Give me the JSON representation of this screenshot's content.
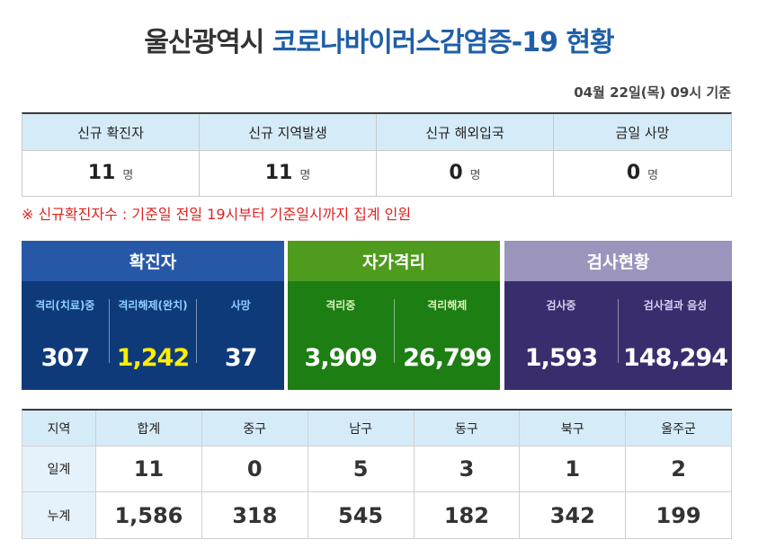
{
  "header": {
    "title_city": "울산광역시",
    "title_main": "코로나바이러스감염증-19 현황",
    "basis": "04월 22일(목) 09시 기준"
  },
  "new_cases": {
    "columns": [
      {
        "label": "신규 확진자",
        "value": "11",
        "unit": "명"
      },
      {
        "label": "신규 지역발생",
        "value": "11",
        "unit": "명"
      },
      {
        "label": "신규 해외입국",
        "value": "0",
        "unit": "명"
      },
      {
        "label": "금일 사망",
        "value": "0",
        "unit": "명"
      }
    ],
    "note": "※ 신규확진자수 : 기준일 전일 19시부터 기준일시까지 집계 인원"
  },
  "panels": {
    "confirmed": {
      "title": "확진자",
      "items": [
        {
          "label": "격리(치료)중",
          "value": "307"
        },
        {
          "label": "격리해제(완치)",
          "value": "1,242"
        },
        {
          "label": "사망",
          "value": "37"
        }
      ]
    },
    "quarantine": {
      "title": "자가격리",
      "items": [
        {
          "label": "격리중",
          "value": "3,909"
        },
        {
          "label": "격리해제",
          "value": "26,799"
        }
      ]
    },
    "testing": {
      "title": "검사현황",
      "items": [
        {
          "label": "검사중",
          "value": "1,593"
        },
        {
          "label": "검사결과 음성",
          "value": "148,294"
        }
      ]
    }
  },
  "colors": {
    "highlight_value": "#ffee00",
    "title_blue": "#1f5fa8",
    "note_red": "#e02020"
  },
  "regions": {
    "headers": [
      "지역",
      "합계",
      "중구",
      "남구",
      "동구",
      "북구",
      "울주군"
    ],
    "rows": [
      {
        "label": "일계",
        "values": [
          "11",
          "0",
          "5",
          "3",
          "1",
          "2"
        ]
      },
      {
        "label": "누계",
        "values": [
          "1,586",
          "318",
          "545",
          "182",
          "342",
          "199"
        ]
      }
    ]
  }
}
